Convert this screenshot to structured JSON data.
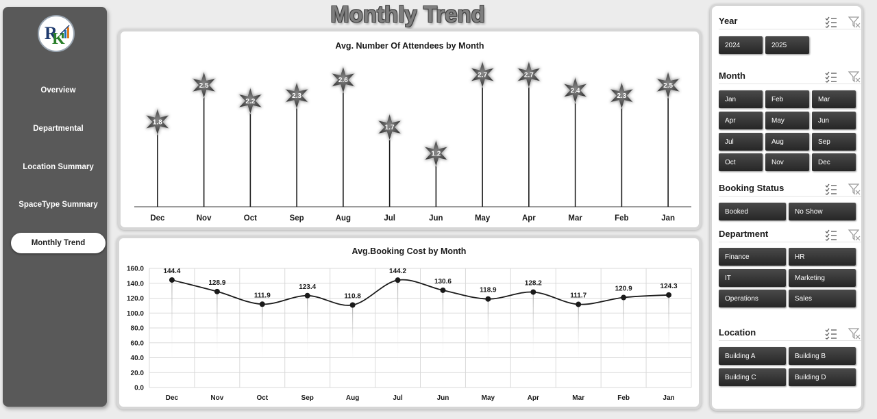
{
  "page": {
    "title": "Monthly Trend"
  },
  "nav": {
    "logo_icon": "logo-icon",
    "items": [
      {
        "label": "Overview"
      },
      {
        "label": "Departmental"
      },
      {
        "label": "Location Summary"
      },
      {
        "label": "SpaceType Summary"
      },
      {
        "label": "Monthly Trend",
        "active": true
      }
    ]
  },
  "chart_data": [
    {
      "type": "bar",
      "title": "Avg. Number Of Attendees by Month",
      "categories": [
        "Dec",
        "Nov",
        "Oct",
        "Sep",
        "Aug",
        "Jul",
        "Jun",
        "May",
        "Apr",
        "Mar",
        "Feb",
        "Jan"
      ],
      "values": [
        1.8,
        2.5,
        2.2,
        2.3,
        2.6,
        1.7,
        1.2,
        2.7,
        2.7,
        2.4,
        2.3,
        2.5
      ],
      "data_labels": [
        "1.8",
        "2.5",
        "2.2",
        "2.3",
        "2.6",
        "1.7",
        "1.2",
        "2.7",
        "2.7",
        "2.4",
        "2.3",
        "2.5"
      ],
      "marker": "star-icon",
      "ylim": [
        0,
        3
      ],
      "grid": false
    },
    {
      "type": "line",
      "title": "Avg.Booking Cost by Month",
      "categories": [
        "Dec",
        "Nov",
        "Oct",
        "Sep",
        "Aug",
        "Jul",
        "Jun",
        "May",
        "Apr",
        "Mar",
        "Feb",
        "Jan"
      ],
      "values": [
        144.4,
        128.9,
        111.9,
        123.4,
        110.8,
        144.2,
        130.6,
        118.9,
        128.2,
        111.7,
        120.9,
        124.3
      ],
      "data_labels": [
        "144.4",
        "128.9",
        "111.9",
        "123.4",
        "110.8",
        "144.2",
        "130.6",
        "118.9",
        "128.2",
        "111.7",
        "120.9",
        "124.3"
      ],
      "yticks": [
        "0.0",
        "20.0",
        "40.0",
        "60.0",
        "80.0",
        "100.0",
        "120.0",
        "140.0",
        "160.0"
      ],
      "ylim": [
        0,
        160
      ],
      "grid": true
    }
  ],
  "slicers": [
    {
      "title": "Year",
      "buttons": [
        "2024",
        "2025"
      ]
    },
    {
      "title": "Month",
      "buttons": [
        "Jan",
        "Feb",
        "Mar",
        "Apr",
        "May",
        "Jun",
        "Jul",
        "Aug",
        "Sep",
        "Oct",
        "Nov",
        "Dec"
      ]
    },
    {
      "title": "Booking Status",
      "buttons": [
        "Booked",
        "No Show"
      ]
    },
    {
      "title": "Department",
      "buttons": [
        "Finance",
        "HR",
        "IT",
        "Marketing",
        "Operations",
        "Sales"
      ]
    },
    {
      "title": "Location",
      "buttons": [
        "Building A",
        "Building B",
        "Building C",
        "Building D"
      ]
    }
  ],
  "slicer_icons": [
    "multi-select-icon",
    "clear-filter-icon"
  ]
}
